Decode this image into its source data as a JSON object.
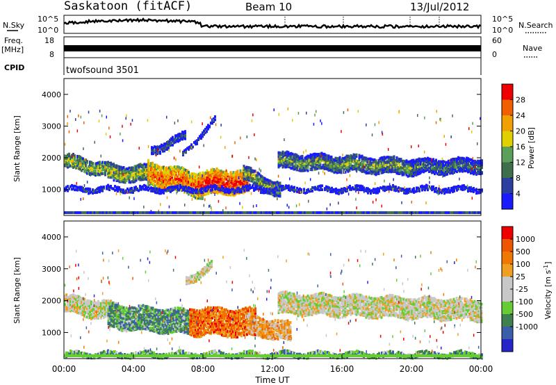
{
  "header": {
    "station": "Saskatoon (fitACF)",
    "beam": "Beam 10",
    "date": "13/Jul/2012"
  },
  "top_panels": {
    "nsky_label": "N.Sky",
    "nsky_ticks": [
      "10^5",
      "10^0"
    ],
    "nsky_right_ticks": [
      "10^5",
      "10^0"
    ],
    "nsearch_label": "N.Search",
    "freq_label_line1": "Freq.",
    "freq_label_line2": "[MHz]",
    "freq_ticks": [
      "18",
      "8"
    ],
    "nave_ticks": [
      "60",
      "0"
    ],
    "nave_label": "Nave",
    "cpid_label": "CPID",
    "cpid_text": "twofsound 3501"
  },
  "colors": {
    "power": [
      "#1a1aff",
      "#2a3fa0",
      "#3f6f4a",
      "#5aa05a",
      "#e0d000",
      "#f0a000",
      "#f06000",
      "#ee0000"
    ],
    "velocity": [
      "#2626c8",
      "#3a5fa8",
      "#3f8050",
      "#66cc33",
      "#c8c8c8",
      "#c8c8c8",
      "#f0a020",
      "#f07800",
      "#ee5500",
      "#ee0000"
    ]
  },
  "chart_data": [
    {
      "type": "heatmap",
      "name": "power",
      "ylabel": "Slant Range [km]",
      "xlabel": "Time UT",
      "yticks": [
        "1000",
        "2000",
        "3000",
        "4000"
      ],
      "xticks": [
        "00:00",
        "04:00",
        "08:00",
        "12:00",
        "16:00",
        "20:00",
        "00:00"
      ],
      "xlim": [
        0,
        24
      ],
      "ylim": [
        180,
        4500
      ],
      "colorbar_label": "Power [dB]",
      "colorbar_ticks": [
        "4",
        "8",
        "12",
        "16",
        "20",
        "24",
        "28"
      ],
      "bands": [
        {
          "t0": 0.0,
          "t1": 3.3,
          "r0": 1900,
          "r1": 1500,
          "width": 420,
          "level": 0.55
        },
        {
          "t0": 2.5,
          "t1": 5.0,
          "r0": 1500,
          "r1": 1500,
          "width": 500,
          "level": 0.55
        },
        {
          "t0": 4.8,
          "t1": 8.0,
          "r0": 1500,
          "r1": 1100,
          "width": 750,
          "level": 0.85
        },
        {
          "t0": 7.7,
          "t1": 10.6,
          "r0": 1200,
          "r1": 1250,
          "width": 750,
          "level": 0.95
        },
        {
          "t0": 10.3,
          "t1": 12.4,
          "r0": 1500,
          "r1": 950,
          "width": 450,
          "level": 0.5
        },
        {
          "t0": 12.3,
          "t1": 20.5,
          "r0": 1900,
          "r1": 1700,
          "width": 500,
          "level": 0.45
        },
        {
          "t0": 20.0,
          "t1": 24.0,
          "r0": 1700,
          "r1": 1750,
          "width": 450,
          "level": 0.35
        },
        {
          "t0": 0.0,
          "t1": 24.0,
          "r0": 1000,
          "r1": 1000,
          "width": 150,
          "level": 0.2
        },
        {
          "t0": 6.8,
          "t1": 8.7,
          "r0": 2100,
          "r1": 3200,
          "width": 150,
          "level": 0.25
        },
        {
          "t0": 5.0,
          "t1": 7.0,
          "r0": 2200,
          "r1": 2700,
          "width": 250,
          "level": 0.3
        }
      ]
    },
    {
      "type": "heatmap",
      "name": "velocity",
      "ylabel": "Slant Range [km]",
      "xlabel": "Time UT",
      "yticks": [
        "1000",
        "2000",
        "3000",
        "4000"
      ],
      "xticks": [
        "00:00",
        "04:00",
        "08:00",
        "12:00",
        "16:00",
        "20:00",
        "00:00"
      ],
      "xlim": [
        0,
        24
      ],
      "ylim": [
        180,
        4500
      ],
      "colorbar_label": "Velocity [m s-1]",
      "colorbar_ticks": [
        "1000",
        "500",
        "100",
        "25",
        "-25",
        "-100",
        "-500",
        "-1000"
      ],
      "bands": [
        {
          "t0": 0.0,
          "t1": 3.3,
          "r0": 1900,
          "r1": 1600,
          "width": 550,
          "level": 0.5
        },
        {
          "t0": 2.5,
          "t1": 7.5,
          "r0": 1500,
          "r1": 1300,
          "width": 750,
          "level": 0.28
        },
        {
          "t0": 7.2,
          "t1": 11.0,
          "r0": 1350,
          "r1": 1300,
          "width": 850,
          "level": 0.78
        },
        {
          "t0": 10.5,
          "t1": 13.0,
          "r0": 1250,
          "r1": 1000,
          "width": 600,
          "level": 0.65
        },
        {
          "t0": 12.3,
          "t1": 24.0,
          "r0": 1900,
          "r1": 1700,
          "width": 650,
          "level": 0.5
        },
        {
          "t0": 7.0,
          "t1": 8.5,
          "r0": 2600,
          "r1": 3100,
          "width": 250,
          "level": 0.5
        },
        {
          "t0": 0.0,
          "t1": 24.0,
          "r0": 300,
          "r1": 300,
          "width": 150,
          "level": 0.3
        }
      ]
    }
  ]
}
